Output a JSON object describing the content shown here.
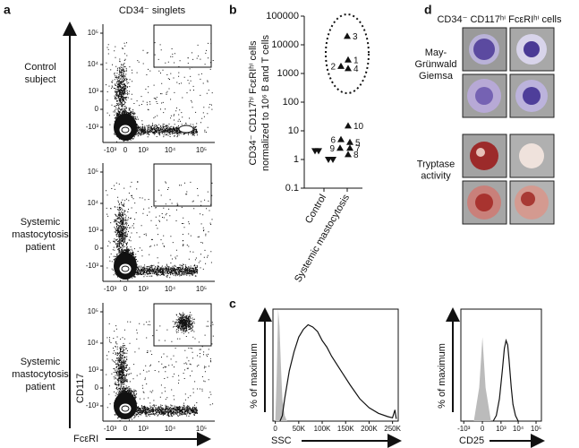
{
  "figure": {
    "a": {
      "label": "a",
      "title": "CD34⁻ singlets",
      "rows": [
        [
          "Control",
          "subject"
        ],
        [
          "Systemic",
          "mastocytosis",
          "patient"
        ],
        [
          "Systemic",
          "mastocytosis",
          "patient"
        ]
      ],
      "y_axis": "CD117",
      "x_axis": "FcεRI",
      "y_ticks": [
        "10⁵",
        "10⁴",
        "10³",
        "0",
        "-10³"
      ],
      "x_ticks": [
        "-10³",
        "0",
        "10³",
        "10⁴",
        "10⁵"
      ]
    },
    "b_label": "b",
    "c_label": "c",
    "d": {
      "label": "d",
      "title": "CD34⁻ CD117ʰⁱ FcεRIʰⁱ cells",
      "rows": [
        [
          "May-",
          "Grünwald",
          "Giemsa"
        ],
        [
          "Tryptase",
          "activity"
        ]
      ]
    }
  },
  "chart_data": [
    {
      "type": "scatter",
      "y_label": [
        "CD34⁻ CD117ʰⁱ FcεRIʰⁱ cells",
        "normalized to 10⁶ B and T cells"
      ],
      "categories": [
        "Control",
        "Systemic mastocytosis"
      ],
      "log_y": true,
      "ylim": [
        0.1,
        100000
      ],
      "yticks": [
        0.1,
        1,
        10,
        100,
        1000,
        10000,
        100000
      ],
      "series": [
        {
          "marker": "triangle-down",
          "color": "#111111",
          "values": [
            2,
            1,
            1,
            2
          ]
        },
        {
          "marker": "triangle-up",
          "color": "#111111",
          "values": [
            3000,
            1800,
            20000,
            1500,
            4,
            5,
            2.5,
            1.5,
            2.5,
            15
          ],
          "labels": [
            "1",
            "2",
            "3",
            "4",
            "5",
            "6",
            "7",
            "8",
            "9",
            "10"
          ]
        }
      ]
    },
    {
      "type": "line",
      "y_label": "% of maximum",
      "x_label": "SSC",
      "xlim": [
        -5000,
        262144
      ],
      "ylim": [
        0,
        100
      ],
      "xticks": [
        0,
        {
          "value": 50000,
          "label": "50K"
        },
        {
          "value": 100000,
          "label": "100K"
        },
        {
          "value": 150000,
          "label": "150K"
        },
        {
          "value": 200000,
          "label": "200K"
        },
        {
          "value": 250000,
          "label": "250K"
        }
      ],
      "series": [
        {
          "fill": true,
          "color": "#bbbbbb",
          "x": [
            0,
            3000,
            6000,
            9000,
            12000,
            15000,
            20000,
            25000
          ],
          "values": [
            0,
            40,
            100,
            85,
            50,
            20,
            5,
            0
          ]
        },
        {
          "fill": false,
          "color": "#111111",
          "x": [
            10000,
            15000,
            20000,
            30000,
            40000,
            50000,
            60000,
            70000,
            80000,
            90000,
            100000,
            110000,
            120000,
            140000,
            160000,
            180000,
            200000,
            220000,
            240000,
            250000,
            255000,
            258000
          ],
          "values": [
            0,
            5,
            20,
            45,
            62,
            75,
            82,
            86,
            84,
            80,
            72,
            66,
            58,
            45,
            32,
            20,
            12,
            7,
            4,
            3,
            10,
            2
          ]
        }
      ]
    },
    {
      "type": "line",
      "y_label": "% of maximum",
      "x_label": "CD25",
      "x_scale": "biexponential",
      "xlim": [
        -1500,
        200000
      ],
      "ylim": [
        0,
        100
      ],
      "xticks": [
        {
          "value": -1000,
          "label": "-10³"
        },
        0,
        {
          "value": 1000,
          "label": "10³"
        },
        {
          "value": 10000,
          "label": "10⁴"
        },
        {
          "value": 100000,
          "label": "10⁵"
        }
      ],
      "series": [
        {
          "fill": true,
          "color": "#bbbbbb",
          "x": [
            -200,
            -50,
            0,
            50,
            200
          ],
          "values": [
            0,
            30,
            75,
            30,
            0
          ]
        },
        {
          "fill": false,
          "color": "#111111",
          "x": [
            300,
            500,
            800,
            1200,
            1600,
            2000,
            2500,
            3000,
            4000,
            5000,
            7000,
            10000
          ],
          "values": [
            0,
            5,
            20,
            45,
            65,
            72,
            68,
            55,
            30,
            15,
            5,
            0
          ]
        }
      ]
    }
  ]
}
